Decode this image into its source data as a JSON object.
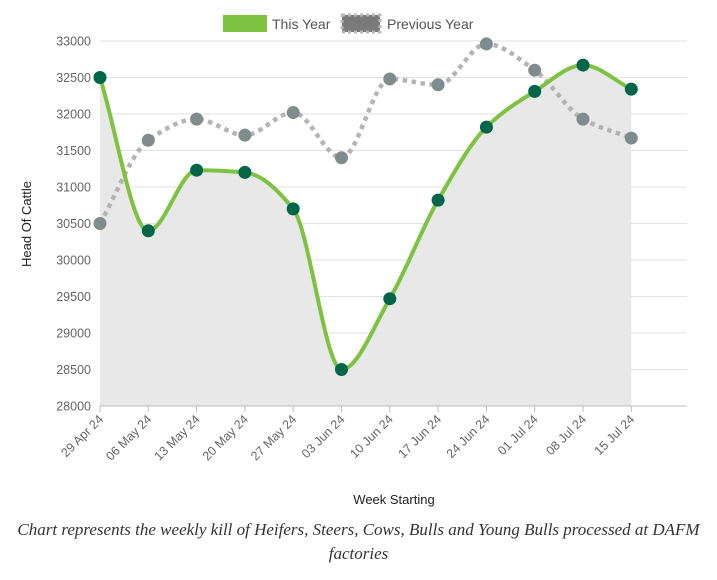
{
  "chart_data": {
    "type": "line",
    "xlabel": "Week Starting",
    "ylabel": "Head Of Cattle",
    "categories": [
      "29 Apr 24",
      "06 May 24",
      "13 May 24",
      "20 May 24",
      "27 May 24",
      "03 Jun 24",
      "10 Jun 24",
      "17 Jun 24",
      "24 Jun 24",
      "01 Jul 24",
      "08 Jul 24",
      "15 Jul 24"
    ],
    "ylim": [
      28000,
      33000
    ],
    "yticks": [
      28500,
      29000,
      29500,
      30000,
      30500,
      31000,
      31500,
      32000,
      32500,
      33000
    ],
    "bottom_tick_label": "28000",
    "grid": true,
    "legend_position": "top-center",
    "series": [
      {
        "name": "This Year",
        "color": "#7dc241",
        "marker_color": "#00664a",
        "style": "solid",
        "fill": "#e8e8e8",
        "values": [
          32500,
          30400,
          31230,
          31200,
          30700,
          28500,
          29470,
          30820,
          31820,
          32310,
          32670,
          32340
        ]
      },
      {
        "name": "Previous Year",
        "color": "#b4b4b4",
        "marker_color": "#7f8c8d",
        "style": "dotted",
        "values": [
          30500,
          31640,
          31930,
          31710,
          32020,
          31400,
          32480,
          32400,
          32960,
          32600,
          31930,
          31670
        ]
      }
    ]
  },
  "caption": "Chart represents the weekly kill of Heifers, Steers, Cows, Bulls and Young Bulls processed at DAFM factories"
}
